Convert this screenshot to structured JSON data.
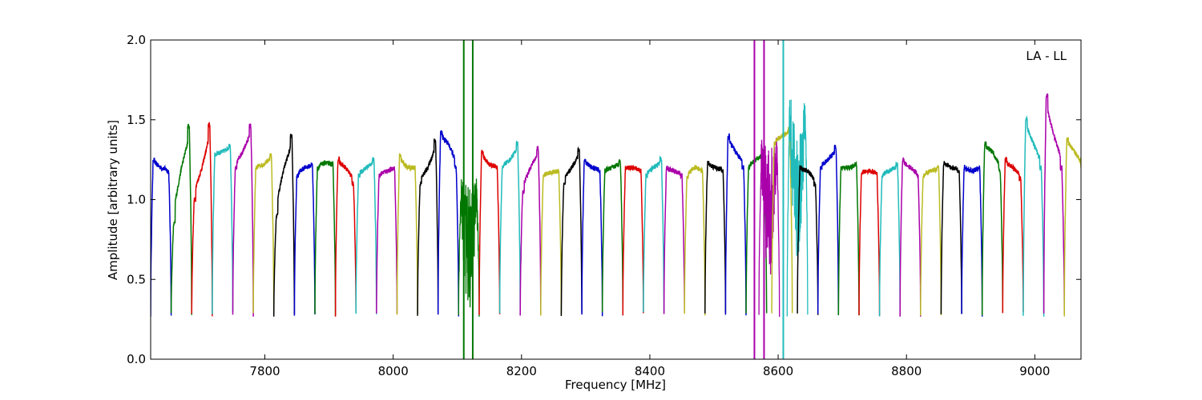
{
  "chart_data": {
    "type": "line",
    "title": "",
    "xlabel": "Frequency [MHz]",
    "ylabel": "Amplitude [arbitrary units]",
    "annotation": "LA - LL",
    "xlim": [
      7622,
      9072
    ],
    "ylim": [
      0.0,
      2.0
    ],
    "xticks": [
      7800,
      8000,
      8200,
      8400,
      8600,
      8800,
      9000
    ],
    "yticks": [
      0.0,
      0.5,
      1.0,
      1.5,
      2.0
    ],
    "ytick_labels": [
      "0.0",
      "0.5",
      "1.0",
      "1.5",
      "2.0"
    ],
    "grid": false,
    "legend": "none",
    "color_cycle": [
      "#0000cc",
      "#007700",
      "#dd0000",
      "#22bbbb",
      "#aa00aa",
      "#bbbb22",
      "#000000"
    ],
    "channel_width_mhz": 32,
    "first_channel_start_mhz": 7622,
    "series": [
      {
        "start": 7622,
        "peaks": [
          1.25,
          1.2,
          1.18
        ],
        "color_index": 0
      },
      {
        "start": 7654,
        "peaks": [
          0.85,
          1.2,
          1.46
        ],
        "color_index": 1
      },
      {
        "start": 7686,
        "peaks": [
          1.0,
          1.2,
          1.47
        ],
        "color_index": 2
      },
      {
        "start": 7718,
        "peaks": [
          1.28,
          1.3,
          1.34
        ],
        "color_index": 3
      },
      {
        "start": 7750,
        "peaks": [
          1.2,
          1.3,
          1.46
        ],
        "color_index": 4
      },
      {
        "start": 7782,
        "peaks": [
          1.2,
          1.22,
          1.28
        ],
        "color_index": 5
      },
      {
        "start": 7814,
        "peaks": [
          0.9,
          1.2,
          1.4
        ],
        "color_index": 6
      },
      {
        "start": 7846,
        "peaks": [
          1.15,
          1.2,
          1.22
        ],
        "color_index": 0
      },
      {
        "start": 7878,
        "peaks": [
          1.2,
          1.23,
          1.22
        ],
        "color_index": 1
      },
      {
        "start": 7910,
        "peaks": [
          1.25,
          1.2,
          1.1
        ],
        "color_index": 2
      },
      {
        "start": 7942,
        "peaks": [
          1.15,
          1.2,
          1.25
        ],
        "color_index": 3
      },
      {
        "start": 7974,
        "peaks": [
          1.15,
          1.18,
          1.2
        ],
        "color_index": 4
      },
      {
        "start": 8006,
        "peaks": [
          1.28,
          1.2,
          1.2
        ],
        "color_index": 5
      },
      {
        "start": 8038,
        "peaks": [
          1.1,
          1.2,
          1.37
        ],
        "color_index": 6
      },
      {
        "start": 8070,
        "peaks": [
          1.42,
          1.35,
          1.2
        ],
        "color_index": 0
      },
      {
        "start": 8102,
        "peaks": [
          1.15,
          1.1,
          1.15
        ],
        "color_index": 1,
        "noisy": true,
        "spikes": [
          8110,
          8124
        ]
      },
      {
        "start": 8134,
        "peaks": [
          1.3,
          1.22,
          1.2
        ],
        "color_index": 2
      },
      {
        "start": 8166,
        "peaks": [
          1.2,
          1.25,
          1.35
        ],
        "color_index": 3
      },
      {
        "start": 8198,
        "peaks": [
          1.05,
          1.2,
          1.32
        ],
        "color_index": 4
      },
      {
        "start": 8230,
        "peaks": [
          1.15,
          1.17,
          1.18
        ],
        "color_index": 5
      },
      {
        "start": 8262,
        "peaks": [
          1.1,
          1.2,
          1.31
        ],
        "color_index": 6
      },
      {
        "start": 8294,
        "peaks": [
          1.25,
          1.2,
          1.18
        ],
        "color_index": 0
      },
      {
        "start": 8326,
        "peaks": [
          1.18,
          1.2,
          1.24
        ],
        "color_index": 1
      },
      {
        "start": 8358,
        "peaks": [
          1.2,
          1.2,
          1.18
        ],
        "color_index": 2
      },
      {
        "start": 8390,
        "peaks": [
          1.15,
          1.2,
          1.25
        ],
        "color_index": 3
      },
      {
        "start": 8422,
        "peaks": [
          1.2,
          1.18,
          1.15
        ],
        "color_index": 4
      },
      {
        "start": 8454,
        "peaks": [
          1.15,
          1.2,
          1.18
        ],
        "color_index": 5
      },
      {
        "start": 8486,
        "peaks": [
          1.23,
          1.2,
          1.18
        ],
        "color_index": 6
      },
      {
        "start": 8518,
        "peaks": [
          1.4,
          1.3,
          1.2
        ],
        "color_index": 0
      },
      {
        "start": 8550,
        "peaks": [
          1.2,
          1.25,
          1.3
        ],
        "color_index": 1
      },
      {
        "start": 8570,
        "peaks": [
          1.4,
          1.3,
          1.4
        ],
        "color_index": 4,
        "noisy": true,
        "spikes": [
          8563,
          8578
        ]
      },
      {
        "start": 8590,
        "peaks": [
          1.35,
          1.4,
          1.44
        ],
        "color_index": 5
      },
      {
        "start": 8614,
        "peaks": [
          1.66,
          1.4,
          1.66
        ],
        "color_index": 3,
        "noisy": true,
        "spikes": [
          8608
        ]
      },
      {
        "start": 8630,
        "peaks": [
          1.2,
          1.18,
          1.1
        ],
        "color_index": 6
      },
      {
        "start": 8662,
        "peaks": [
          1.2,
          1.25,
          1.33
        ],
        "color_index": 0
      },
      {
        "start": 8694,
        "peaks": [
          1.2,
          1.2,
          1.22
        ],
        "color_index": 1
      },
      {
        "start": 8726,
        "peaks": [
          1.17,
          1.18,
          1.16
        ],
        "color_index": 2
      },
      {
        "start": 8758,
        "peaks": [
          1.15,
          1.18,
          1.22
        ],
        "color_index": 3
      },
      {
        "start": 8790,
        "peaks": [
          1.25,
          1.2,
          1.15
        ],
        "color_index": 4
      },
      {
        "start": 8822,
        "peaks": [
          1.15,
          1.18,
          1.2
        ],
        "color_index": 5
      },
      {
        "start": 8854,
        "peaks": [
          1.23,
          1.2,
          1.18
        ],
        "color_index": 6
      },
      {
        "start": 8886,
        "peaks": [
          1.2,
          1.18,
          1.2
        ],
        "color_index": 0
      },
      {
        "start": 8918,
        "peaks": [
          1.35,
          1.3,
          1.18
        ],
        "color_index": 1
      },
      {
        "start": 8950,
        "peaks": [
          1.25,
          1.2,
          1.13
        ],
        "color_index": 2
      },
      {
        "start": 8982,
        "peaks": [
          1.51,
          1.35,
          1.2
        ],
        "color_index": 3
      },
      {
        "start": 9014,
        "peaks": [
          1.65,
          1.4,
          1.2
        ],
        "color_index": 4
      },
      {
        "start": 9046,
        "peaks": [
          1.38,
          1.3,
          1.2
        ],
        "color_index": 5
      }
    ]
  }
}
